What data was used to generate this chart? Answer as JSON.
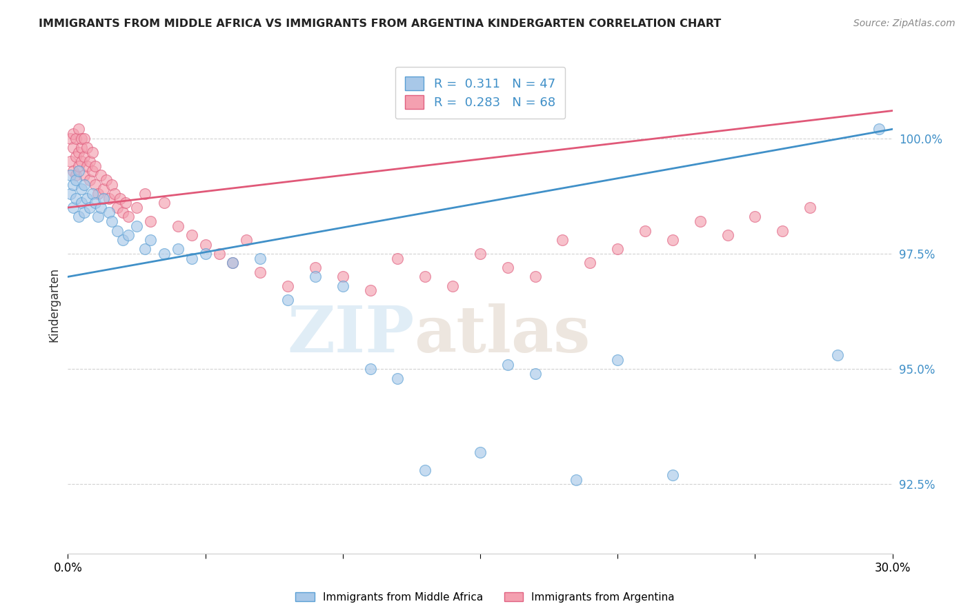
{
  "title": "IMMIGRANTS FROM MIDDLE AFRICA VS IMMIGRANTS FROM ARGENTINA KINDERGARTEN CORRELATION CHART",
  "source": "Source: ZipAtlas.com",
  "ylabel": "Kindergarten",
  "legend_blue_label": "Immigrants from Middle Africa",
  "legend_pink_label": "Immigrants from Argentina",
  "legend_blue_R": 0.311,
  "legend_blue_N": 47,
  "legend_pink_R": 0.283,
  "legend_pink_N": 68,
  "xlim": [
    0.0,
    0.3
  ],
  "ylim": [
    91.0,
    101.8
  ],
  "yticks": [
    92.5,
    95.0,
    97.5,
    100.0
  ],
  "ytick_labels": [
    "92.5%",
    "95.0%",
    "97.5%",
    "100.0%"
  ],
  "xticks": [
    0.0,
    0.05,
    0.1,
    0.15,
    0.2,
    0.25,
    0.3
  ],
  "xtick_labels": [
    "0.0%",
    "",
    "",
    "",
    "",
    "",
    "30.0%"
  ],
  "blue_color": "#a8c8e8",
  "pink_color": "#f4a0b0",
  "blue_edge_color": "#5a9fd4",
  "pink_edge_color": "#e06080",
  "blue_line_color": "#4090c8",
  "pink_line_color": "#e05878",
  "blue_scatter_x": [
    0.001,
    0.001,
    0.002,
    0.002,
    0.003,
    0.003,
    0.004,
    0.004,
    0.005,
    0.005,
    0.006,
    0.006,
    0.007,
    0.008,
    0.009,
    0.01,
    0.011,
    0.012,
    0.013,
    0.015,
    0.016,
    0.018,
    0.02,
    0.022,
    0.025,
    0.028,
    0.03,
    0.035,
    0.04,
    0.045,
    0.05,
    0.06,
    0.07,
    0.08,
    0.09,
    0.1,
    0.11,
    0.12,
    0.13,
    0.15,
    0.16,
    0.17,
    0.185,
    0.2,
    0.22,
    0.28,
    0.295
  ],
  "blue_scatter_y": [
    99.2,
    98.8,
    99.0,
    98.5,
    98.7,
    99.1,
    98.3,
    99.3,
    98.9,
    98.6,
    99.0,
    98.4,
    98.7,
    98.5,
    98.8,
    98.6,
    98.3,
    98.5,
    98.7,
    98.4,
    98.2,
    98.0,
    97.8,
    97.9,
    98.1,
    97.6,
    97.8,
    97.5,
    97.6,
    97.4,
    97.5,
    97.3,
    97.4,
    96.5,
    97.0,
    96.8,
    95.0,
    94.8,
    92.8,
    93.2,
    95.1,
    94.9,
    92.6,
    95.2,
    92.7,
    95.3,
    100.2
  ],
  "pink_scatter_x": [
    0.001,
    0.001,
    0.002,
    0.002,
    0.002,
    0.003,
    0.003,
    0.003,
    0.004,
    0.004,
    0.004,
    0.005,
    0.005,
    0.005,
    0.006,
    0.006,
    0.006,
    0.007,
    0.007,
    0.008,
    0.008,
    0.009,
    0.009,
    0.01,
    0.01,
    0.011,
    0.012,
    0.013,
    0.014,
    0.015,
    0.016,
    0.017,
    0.018,
    0.019,
    0.02,
    0.021,
    0.022,
    0.025,
    0.028,
    0.03,
    0.035,
    0.04,
    0.045,
    0.05,
    0.055,
    0.06,
    0.065,
    0.07,
    0.08,
    0.09,
    0.1,
    0.11,
    0.12,
    0.13,
    0.14,
    0.15,
    0.16,
    0.17,
    0.18,
    0.19,
    0.2,
    0.21,
    0.22,
    0.23,
    0.24,
    0.25,
    0.26,
    0.27
  ],
  "pink_scatter_y": [
    100.0,
    99.5,
    99.8,
    99.3,
    100.1,
    99.6,
    100.0,
    99.2,
    99.7,
    99.4,
    100.2,
    99.8,
    100.0,
    99.5,
    99.6,
    99.2,
    100.0,
    99.4,
    99.8,
    99.5,
    99.1,
    99.3,
    99.7,
    99.0,
    99.4,
    98.8,
    99.2,
    98.9,
    99.1,
    98.7,
    99.0,
    98.8,
    98.5,
    98.7,
    98.4,
    98.6,
    98.3,
    98.5,
    98.8,
    98.2,
    98.6,
    98.1,
    97.9,
    97.7,
    97.5,
    97.3,
    97.8,
    97.1,
    96.8,
    97.2,
    97.0,
    96.7,
    97.4,
    97.0,
    96.8,
    97.5,
    97.2,
    97.0,
    97.8,
    97.3,
    97.6,
    98.0,
    97.8,
    98.2,
    97.9,
    98.3,
    98.0,
    98.5
  ],
  "watermark_zip": "ZIP",
  "watermark_atlas": "atlas",
  "background_color": "#ffffff",
  "grid_color": "#cccccc"
}
